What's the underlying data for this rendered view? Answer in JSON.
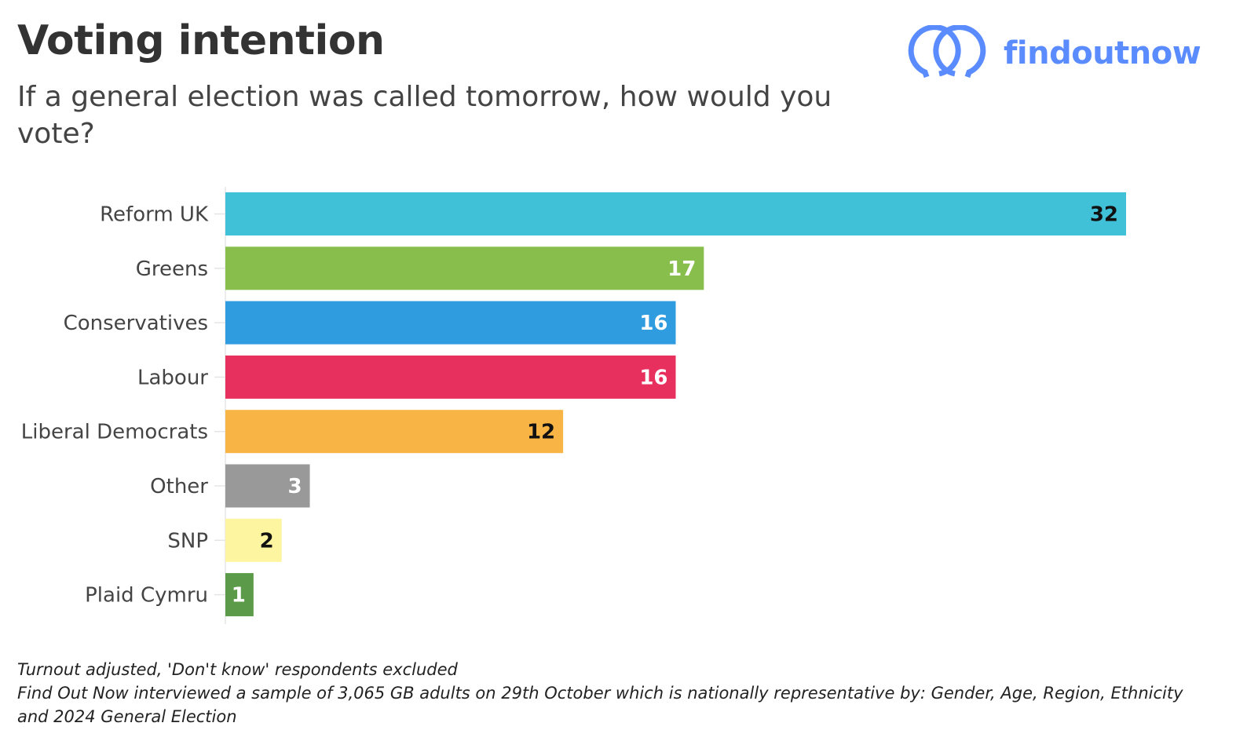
{
  "header": {
    "title": "Voting intention",
    "subtitle": "If a general election was called tomorrow, how would you vote?"
  },
  "logo": {
    "text": "findoutnow",
    "icon": "overlapping-speech-rings-icon",
    "color": "#5b8cff"
  },
  "chart_data": {
    "type": "bar",
    "orientation": "horizontal",
    "categories": [
      "Reform UK",
      "Greens",
      "Conservatives",
      "Labour",
      "Liberal Democrats",
      "Other",
      "SNP",
      "Plaid Cymru"
    ],
    "values": [
      32,
      17,
      16,
      16,
      12,
      3,
      2,
      1
    ],
    "colors": [
      "#41c1d8",
      "#88bf4c",
      "#309ce0",
      "#e8305f",
      "#f8b445",
      "#999999",
      "#fdf5a0",
      "#5a9a48"
    ],
    "label_colors": [
      "#111111",
      "#ffffff",
      "#ffffff",
      "#ffffff",
      "#111111",
      "#ffffff",
      "#111111",
      "#ffffff"
    ],
    "xlim": [
      0,
      32
    ],
    "grid": false,
    "legend": "none"
  },
  "footer": {
    "note": "Turnout adjusted, 'Don't know' respondents excluded",
    "methodology": "Find Out Now interviewed a sample of 3,065 GB adults on 29th October which is nationally representative by: Gender, Age, Region, Ethnicity and 2024 General Election"
  }
}
